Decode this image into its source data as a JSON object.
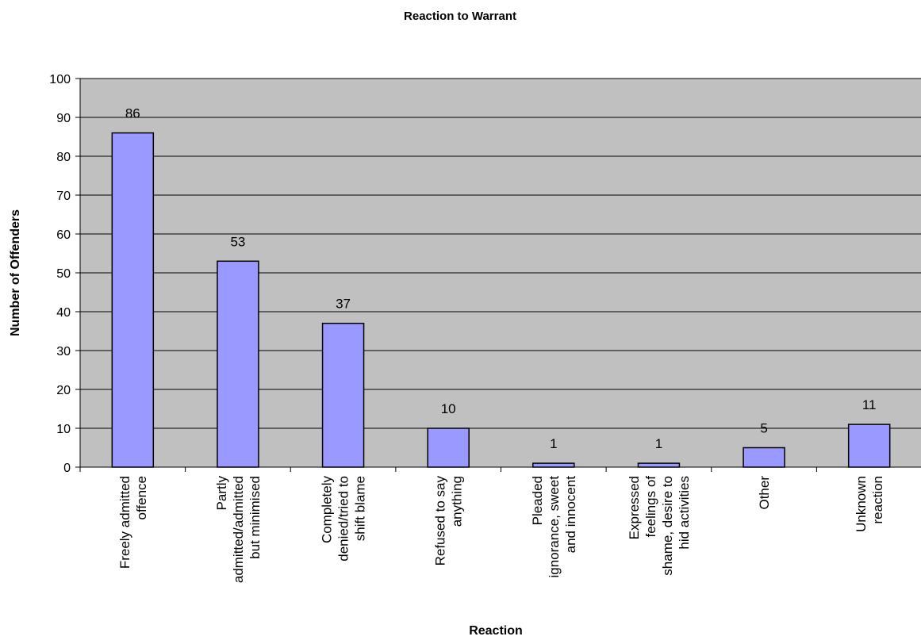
{
  "chart_data": {
    "type": "bar",
    "title": "Reaction to Warrant",
    "xlabel": "Reaction",
    "ylabel": "Number of Offenders",
    "categories": [
      [
        "Freely admitted",
        "offence"
      ],
      [
        "Partly",
        "admitted/admitted",
        "but minimised"
      ],
      [
        "Completely",
        "denied/tried to",
        "shift blame"
      ],
      [
        "Refused to say",
        "anything"
      ],
      [
        "Pleaded",
        "ignorance, sweet",
        "and innocent"
      ],
      [
        "Expressed",
        "feelings of",
        "shame, desire to",
        "hid activities"
      ],
      [
        "Other"
      ],
      [
        "Unknown",
        "reaction"
      ]
    ],
    "values": [
      86,
      53,
      37,
      10,
      1,
      1,
      5,
      11
    ],
    "data_labels": [
      "86",
      "53",
      "37",
      "10",
      "1",
      "1",
      "5",
      "11"
    ],
    "ylim": [
      0,
      100
    ],
    "yticks": [
      0,
      10,
      20,
      30,
      40,
      50,
      60,
      70,
      80,
      90,
      100
    ],
    "ytick_labels": [
      "0",
      "10",
      "20",
      "30",
      "40",
      "50",
      "60",
      "70",
      "80",
      "90",
      "100"
    ],
    "grid": true,
    "legend": false,
    "colors": {
      "plot_background": "#c0c0c0",
      "bar_fill": "#9999ff",
      "bar_stroke": "#000000",
      "gridline": "#000000",
      "axis": "#000000"
    }
  }
}
